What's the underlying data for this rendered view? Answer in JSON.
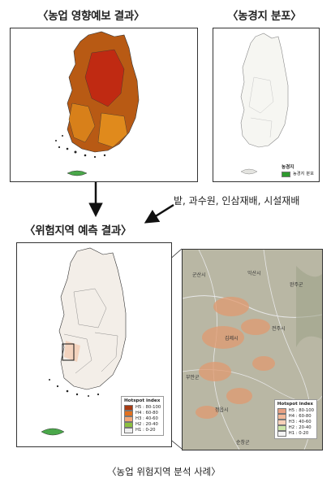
{
  "titles": {
    "forecast": "〈농업 영향예보 결과〉",
    "farmland": "〈농경지 분포〉",
    "risk": "〈위험지역 예측 결과〉"
  },
  "note": "밭, 과수원, 인삼재배, 시설재배",
  "caption": "〈농업 위험지역 분석 사례〉",
  "hotspot_legend": {
    "title": "Hotspot index",
    "items": [
      {
        "label": "H5 : 80-100",
        "color": "#a83a12"
      },
      {
        "label": "H4 : 60-80",
        "color": "#e2701e"
      },
      {
        "label": "H3 : 40-60",
        "color": "#f5a878"
      },
      {
        "label": "H2 : 20-40",
        "color": "#8cc040"
      },
      {
        "label": "H1 : 0-20",
        "color": "#eeeeee"
      }
    ]
  },
  "farmland_legend": {
    "title": "농경지",
    "item": "농경지 분포"
  },
  "zoom_places": [
    "군산시",
    "익산시",
    "완주군",
    "김제시",
    "전주시",
    "부안군",
    "정읍시",
    "순창군"
  ]
}
